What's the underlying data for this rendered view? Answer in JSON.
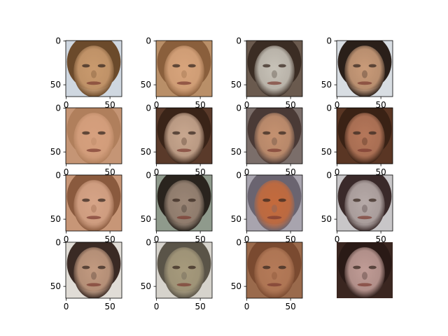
{
  "figure": {
    "rows": 4,
    "cols": 4,
    "image_size": 64,
    "tick_color": "#000000",
    "background": "#ffffff"
  },
  "x_tick_labels": [
    "0",
    "50"
  ],
  "y_tick_labels": [
    "0",
    "50"
  ],
  "panels": [
    {
      "name": "face-r1-c1",
      "show_yticks": true,
      "show_xticks": true,
      "skin": "#c99a6e",
      "hair": "#6b4a2b",
      "bg": "#cfd7e0",
      "description": "distorted male face"
    },
    {
      "name": "face-r1-c2",
      "show_yticks": true,
      "show_xticks": true,
      "skin": "#d7a47c",
      "hair": "#8a5f3c",
      "bg": "#b98f68",
      "description": "smiling face"
    },
    {
      "name": "face-r1-c3",
      "show_yticks": true,
      "show_xticks": true,
      "skin": "#c7c2b8",
      "hair": "#3b2d24",
      "bg": "#6a5a4e",
      "description": "pale blurred face"
    },
    {
      "name": "face-r1-c4",
      "show_yticks": true,
      "show_xticks": true,
      "skin": "#c99b79",
      "hair": "#2a1f19",
      "bg": "#d8dde2",
      "description": "face with dark hair"
    },
    {
      "name": "face-r2-c1",
      "show_yticks": true,
      "show_xticks": true,
      "skin": "#d6a07e",
      "hair": "#b07f5c",
      "bg": "#c59575",
      "description": "soft face"
    },
    {
      "name": "face-r2-c2",
      "show_yticks": true,
      "show_xticks": true,
      "skin": "#c8a78f",
      "hair": "#3a2418",
      "bg": "#5a3a2a",
      "description": "face with long dark hair"
    },
    {
      "name": "face-r2-c3",
      "show_yticks": true,
      "show_xticks": true,
      "skin": "#c49170",
      "hair": "#4a3a36",
      "bg": "#7b6e6a",
      "description": "grinning face"
    },
    {
      "name": "face-r2-c4",
      "show_yticks": true,
      "show_xticks": true,
      "skin": "#b5775a",
      "hair": "#3a2215",
      "bg": "#5a3624",
      "description": "reddish face"
    },
    {
      "name": "face-r3-c1",
      "show_yticks": true,
      "show_xticks": true,
      "skin": "#d6a487",
      "hair": "#8a5a3e",
      "bg": "#c79677",
      "description": "smiling face"
    },
    {
      "name": "face-r3-c2",
      "show_yticks": true,
      "show_xticks": true,
      "skin": "#9b8676",
      "hair": "#2a241e",
      "bg": "#8f9a8c",
      "description": "dark blurred face"
    },
    {
      "name": "face-r3-c3",
      "show_yticks": true,
      "show_xticks": true,
      "skin": "#c46a3c",
      "hair": "#6a6470",
      "bg": "#a8a4ae",
      "description": "orange distorted face"
    },
    {
      "name": "face-r3-c4",
      "show_yticks": true,
      "show_xticks": true,
      "skin": "#b6aaa8",
      "hair": "#3a2a2a",
      "bg": "#c8c6c8",
      "description": "pale distorted face"
    },
    {
      "name": "face-r4-c1",
      "show_yticks": true,
      "show_xticks": true,
      "skin": "#c29a80",
      "hair": "#3a2a24",
      "bg": "#e0dcd6",
      "description": "male face"
    },
    {
      "name": "face-r4-c2",
      "show_yticks": true,
      "show_xticks": true,
      "skin": "#a69a7c",
      "hair": "#5a5448",
      "bg": "#d6d3cc",
      "description": "noisy face"
    },
    {
      "name": "face-r4-c3",
      "show_yticks": true,
      "show_xticks": true,
      "skin": "#b47a58",
      "hair": "#7a4a30",
      "bg": "#9a6a4c",
      "description": "face with brown hair"
    },
    {
      "name": "face-r4-c4",
      "show_yticks": false,
      "show_xticks": false,
      "skin": "#c09c96",
      "hair": "#2a1a16",
      "bg": "#3a2620",
      "description": "dark face"
    }
  ]
}
